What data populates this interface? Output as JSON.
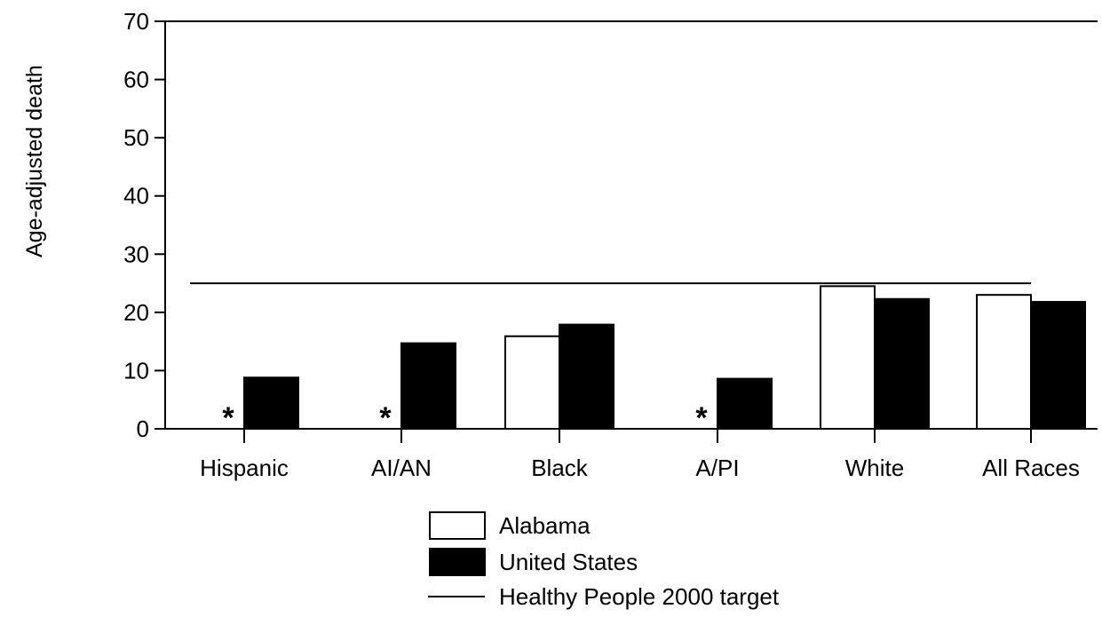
{
  "chart_data": {
    "type": "bar",
    "ylabel": "Age-adjusted death",
    "yticks": [
      0,
      10,
      20,
      30,
      40,
      50,
      60,
      70
    ],
    "ylim": [
      0,
      70
    ],
    "categories": [
      "Hispanic",
      "AI/AN",
      "Black",
      "A/PI",
      "White",
      "All Races"
    ],
    "series": [
      {
        "name": "Alabama",
        "fill": "#ffffff",
        "values": [
          null,
          null,
          15.9,
          null,
          24.5,
          23.0
        ]
      },
      {
        "name": "United States",
        "fill": "#000000",
        "values": [
          8.8,
          14.7,
          17.9,
          8.6,
          22.3,
          21.8
        ]
      }
    ],
    "target": {
      "name": "Healthy People 2000 target",
      "value": 25
    },
    "suppressed_marker": "*",
    "legend_position": "bottom-center",
    "grid": false
  }
}
